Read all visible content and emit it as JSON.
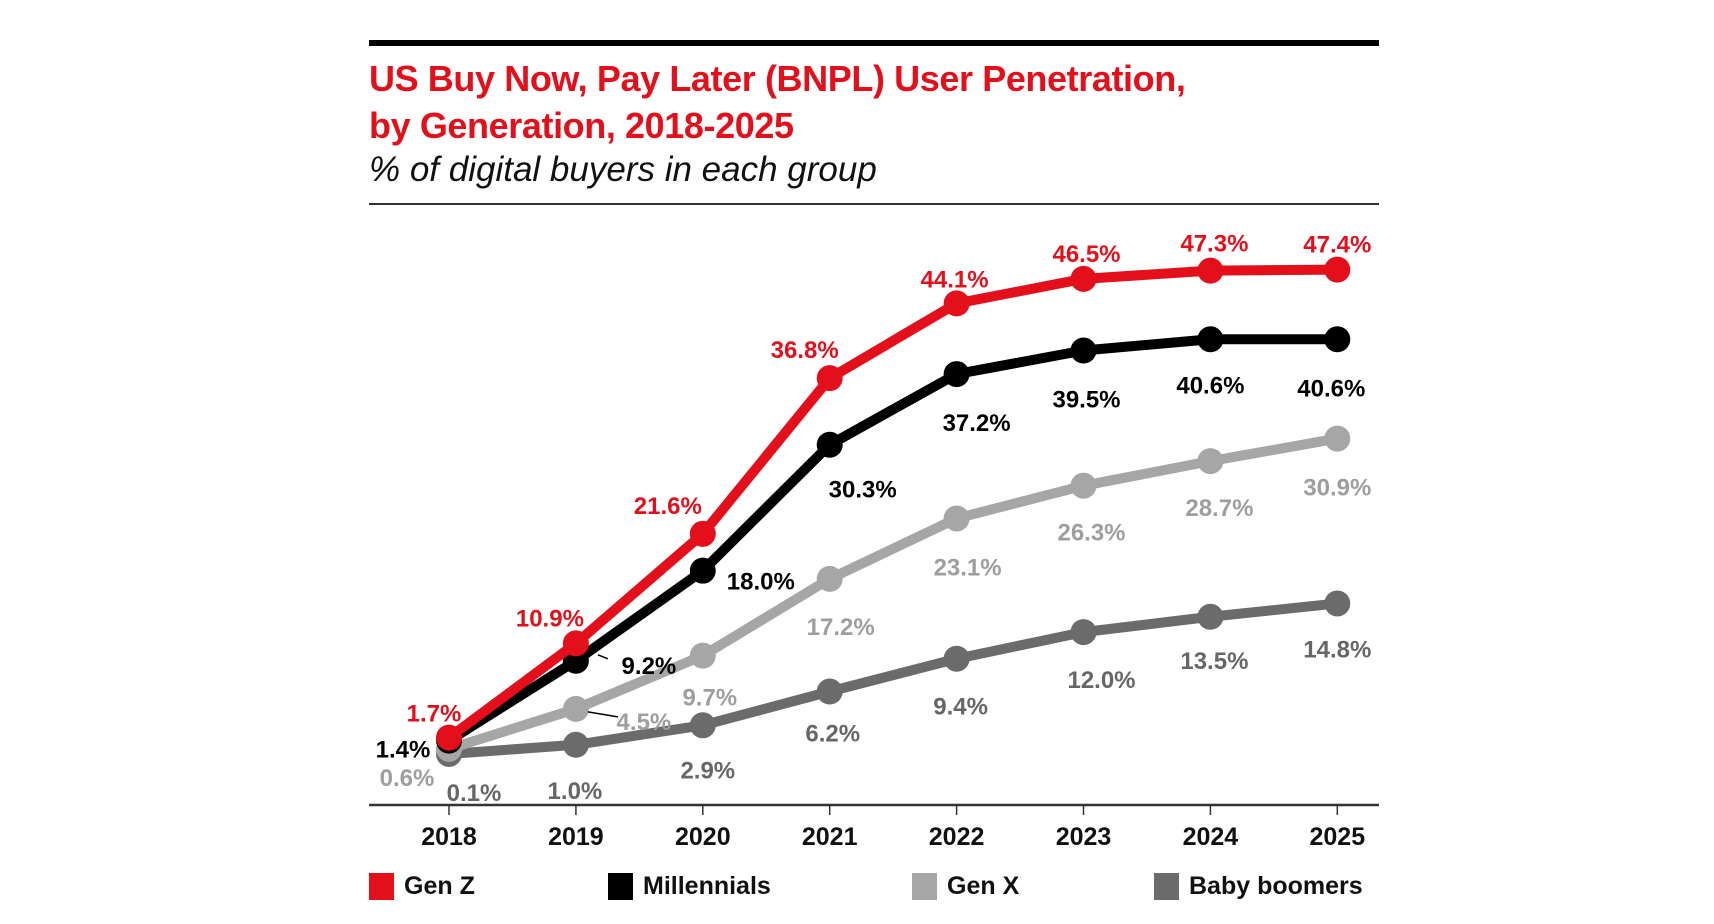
{
  "chart_data": {
    "type": "line",
    "title": "US Buy Now, Pay Later (BNPL) User Penetration, by Generation, 2018-2025",
    "title_line1": "US Buy Now, Pay Later (BNPL) User Penetration,",
    "title_line2": "by Generation, 2018-2025",
    "subtitle": "% of digital buyers in each group",
    "xlabel": "",
    "ylabel": "% of digital buyers in each group",
    "ylim": [
      0,
      50
    ],
    "grid": false,
    "legend_position": "bottom",
    "categories": [
      "2018",
      "2019",
      "2020",
      "2021",
      "2022",
      "2023",
      "2024",
      "2025"
    ],
    "series": [
      {
        "name": "Gen Z",
        "color": "#e3101b",
        "label_color": "#e3101b",
        "values": [
          1.7,
          10.9,
          21.6,
          36.8,
          44.1,
          46.5,
          47.3,
          47.4
        ],
        "labels": [
          "1.7%",
          "10.9%",
          "21.6%",
          "36.8%",
          "44.1%",
          "46.5%",
          "47.3%",
          "47.4%"
        ]
      },
      {
        "name": "Millennials",
        "color": "#000000",
        "label_color": "#000000",
        "values": [
          1.4,
          9.2,
          18.0,
          30.3,
          37.2,
          39.5,
          40.6,
          40.6
        ],
        "labels": [
          "1.4%",
          "9.2%",
          "18.0%",
          "30.3%",
          "37.2%",
          "39.5%",
          "40.6%",
          "40.6%"
        ]
      },
      {
        "name": "Gen X",
        "color": "#a6a6a6",
        "label_color": "#9e9e9e",
        "values": [
          0.6,
          4.5,
          9.7,
          17.2,
          23.1,
          26.3,
          28.7,
          30.9
        ],
        "labels": [
          "0.6%",
          "4.5%",
          "9.7%",
          "17.2%",
          "23.1%",
          "26.3%",
          "28.7%",
          "30.9%"
        ]
      },
      {
        "name": "Baby boomers",
        "color": "#6b6b6b",
        "label_color": "#666666",
        "values": [
          0.1,
          1.0,
          2.9,
          6.2,
          9.4,
          12.0,
          13.5,
          14.8
        ],
        "labels": [
          "0.1%",
          "1.0%",
          "2.9%",
          "6.2%",
          "9.4%",
          "12.0%",
          "13.5%",
          "14.8%"
        ]
      }
    ]
  }
}
